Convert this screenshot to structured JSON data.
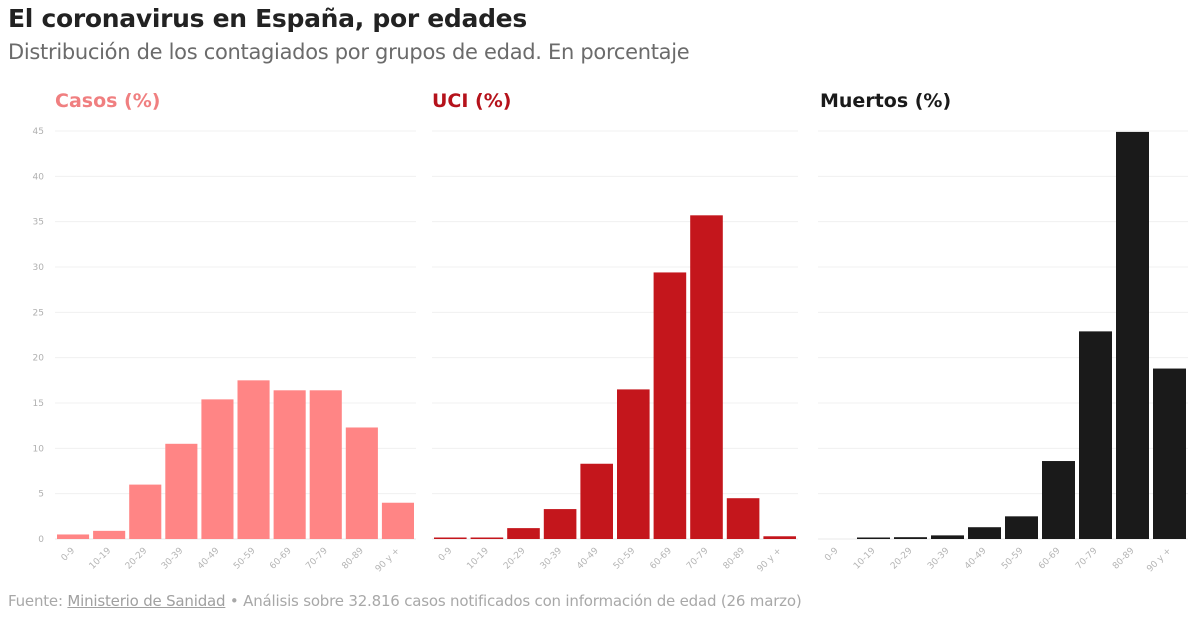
{
  "header": {
    "title": "El coronavirus en España, por edades",
    "subtitle": "Distribución de los contagiados por grupos de edad. En porcentaje"
  },
  "footer": {
    "source_prefix": "Fuente:",
    "source_link": "Ministerio de Sanidad",
    "separator": "•",
    "note": "Análisis sobre 32.816 casos notificados con información de edad (26 marzo)"
  },
  "chart_data": {
    "type": "bar",
    "title": "El coronavirus en España, por edades",
    "subtitle": "Distribución de los contagiados por grupos de edad. En porcentaje",
    "xlabel": "",
    "ylabel": "",
    "ylim": [
      0,
      45
    ],
    "yticks": [
      0,
      5,
      10,
      15,
      20,
      25,
      30,
      35,
      40,
      45
    ],
    "grid": true,
    "legend": "none",
    "categories": [
      "0-9",
      "10-19",
      "20-29",
      "30-39",
      "40-49",
      "50-59",
      "60-69",
      "70-79",
      "80-89",
      "90 y +"
    ],
    "series": [
      {
        "name": "Casos (%)",
        "color": "#ff8585",
        "title_color": "#f07f80",
        "values": [
          0.5,
          0.9,
          6.0,
          10.5,
          15.4,
          17.5,
          16.4,
          16.4,
          12.3,
          4.0
        ]
      },
      {
        "name": "UCI (%)",
        "color": "#c4161c",
        "title_color": "#b5121b",
        "values": [
          0.1,
          0.1,
          1.2,
          3.3,
          8.3,
          16.5,
          29.4,
          35.7,
          4.5,
          0.3
        ]
      },
      {
        "name": "Muertos (%)",
        "color": "#1a1a1a",
        "title_color": "#1a1a1a",
        "values": [
          0.0,
          0.1,
          0.2,
          0.4,
          1.3,
          2.5,
          8.6,
          22.9,
          44.9,
          18.8
        ]
      }
    ]
  }
}
